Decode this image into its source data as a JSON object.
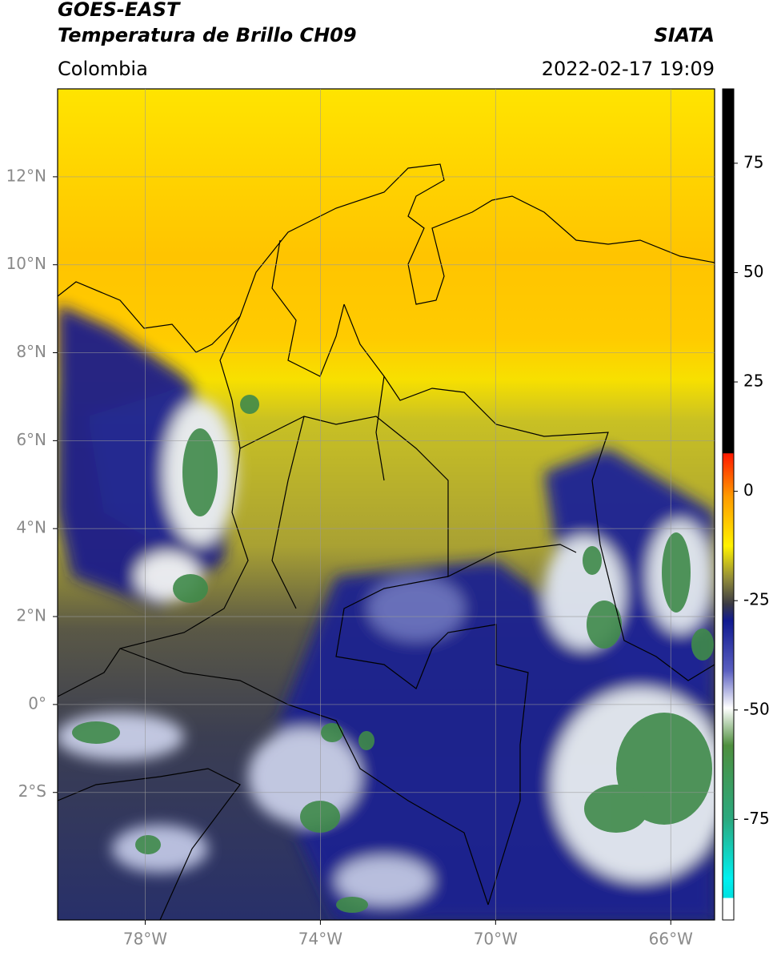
{
  "header": {
    "source": "GOES-EAST",
    "title": "Temperatura de Brillo CH09",
    "org": "SIATA",
    "region": "Colombia",
    "datetime": "2022-02-17 19:09"
  },
  "map": {
    "lon_lim": [
      -80,
      -65
    ],
    "lat_lim": [
      -4.9,
      14
    ],
    "lon_ticks": [
      {
        "value": -78,
        "label": "78°W"
      },
      {
        "value": -74,
        "label": "74°W"
      },
      {
        "value": -70,
        "label": "70°W"
      },
      {
        "value": -66,
        "label": "66°W"
      }
    ],
    "lat_ticks": [
      {
        "value": 12,
        "label": "12°N"
      },
      {
        "value": 10,
        "label": "10°N"
      },
      {
        "value": 8,
        "label": "8°N"
      },
      {
        "value": 6,
        "label": "6°N"
      },
      {
        "value": 4,
        "label": "4°N"
      },
      {
        "value": 2,
        "label": "2°N"
      },
      {
        "value": 0,
        "label": "0°"
      },
      {
        "value": -2,
        "label": "2°S"
      }
    ],
    "grid": true
  },
  "colorbar": {
    "clim": [
      -98,
      92
    ],
    "ticks": [
      75,
      50,
      25,
      0,
      -25,
      -50,
      -75
    ]
  }
}
